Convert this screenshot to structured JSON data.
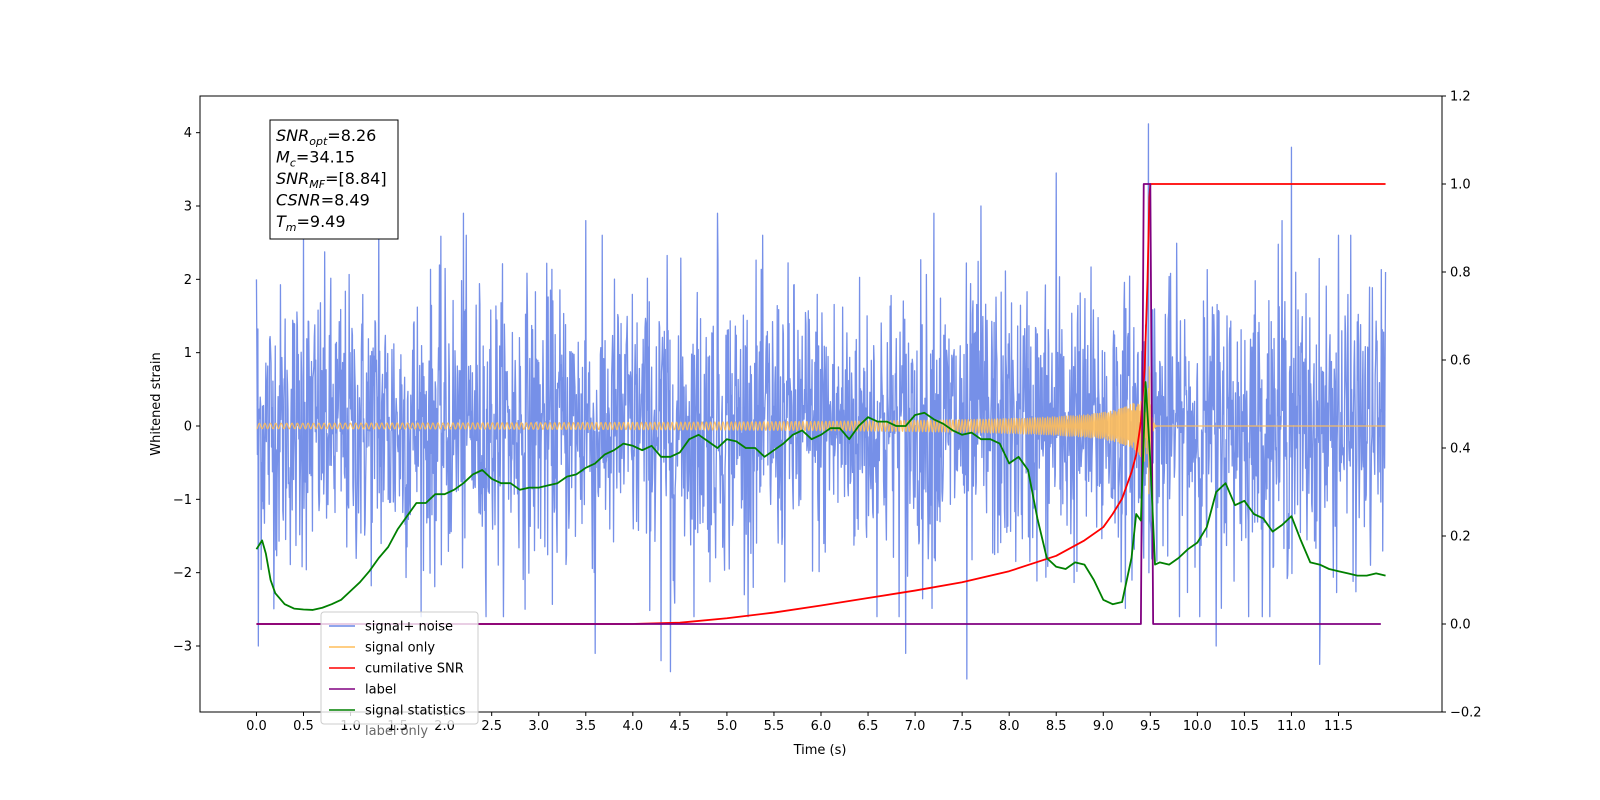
{
  "chart_data": {
    "type": "line",
    "xlabel": "Time (s)",
    "ylabel": "Whitened strain",
    "xlim": [
      -0.6,
      12.6
    ],
    "ylim": [
      -3.9,
      4.5
    ],
    "ylim_right": [
      -0.2,
      1.2
    ],
    "x_ticks": [
      "0.0",
      "0.5",
      "1.0",
      "1.5",
      "2.0",
      "2.5",
      "3.0",
      "3.5",
      "4.0",
      "4.5",
      "5.0",
      "5.5",
      "6.0",
      "6.5",
      "7.0",
      "7.5",
      "8.0",
      "8.5",
      "9.0",
      "9.5",
      "10.0",
      "10.5",
      "11.0",
      "11.5"
    ],
    "y_ticks_left": [
      "−3",
      "−2",
      "−1",
      "0",
      "1",
      "2",
      "3",
      "4"
    ],
    "y_ticks_right": [
      "−0.2",
      "0.0",
      "0.2",
      "0.4",
      "0.6",
      "0.8",
      "1.0",
      "1.2"
    ],
    "grid": false,
    "legend_placement": "lower-left",
    "annotation": [
      {
        "main": "SNR",
        "sub": "opt",
        "rest": "=8.26"
      },
      {
        "main": "M",
        "sub": "c",
        "rest": "=34.15"
      },
      {
        "main": "SNR",
        "sub": "MF",
        "rest": "=[8.84]"
      },
      {
        "main": "CSNR",
        "sub": "",
        "rest": "=8.49"
      },
      {
        "main": "T",
        "sub": "m",
        "rest": "=9.49"
      }
    ],
    "series": [
      {
        "name": "signal+ noise",
        "axis": "left",
        "color": "#6a87e6",
        "kind": "noise",
        "x_range": [
          0.0,
          12.0
        ],
        "peaks_high": [
          [
            0.0,
            2.0
          ],
          [
            0.5,
            2.6
          ],
          [
            1.3,
            2.9
          ],
          [
            2.2,
            2.9
          ],
          [
            3.5,
            2.8
          ],
          [
            4.9,
            2.9
          ],
          [
            7.2,
            2.9
          ],
          [
            7.7,
            3.0
          ],
          [
            8.5,
            3.45
          ],
          [
            9.48,
            4.12
          ],
          [
            10.9,
            2.8
          ],
          [
            11.0,
            3.8
          ],
          [
            11.5,
            2.6
          ],
          [
            12.0,
            2.1
          ]
        ],
        "peaks_low": [
          [
            0.02,
            -3.0
          ],
          [
            3.6,
            -3.1
          ],
          [
            4.3,
            -3.2
          ],
          [
            4.4,
            -3.35
          ],
          [
            6.9,
            -3.1
          ],
          [
            7.55,
            -3.45
          ],
          [
            10.2,
            -3.0
          ],
          [
            11.3,
            -3.25
          ]
        ]
      },
      {
        "name": "signal only",
        "axis": "left",
        "color": "#ffbe5a",
        "kind": "chirp",
        "x_range": [
          0.0,
          12.0
        ],
        "merger_time": 9.49,
        "peak_amplitude": 1.1
      },
      {
        "name": "cumilative SNR",
        "axis": "right",
        "color": "#ff0000",
        "x": [
          0.0,
          4.0,
          4.5,
          5.0,
          5.5,
          6.0,
          6.5,
          7.0,
          7.5,
          8.0,
          8.5,
          8.8,
          9.0,
          9.1,
          9.2,
          9.3,
          9.35,
          9.4,
          9.44,
          9.47,
          9.49,
          9.5,
          12.0
        ],
        "y": [
          0.0,
          0.0,
          0.003,
          0.013,
          0.026,
          0.042,
          0.059,
          0.076,
          0.095,
          0.12,
          0.155,
          0.19,
          0.22,
          0.25,
          0.285,
          0.345,
          0.385,
          0.46,
          0.58,
          0.78,
          0.97,
          1.0,
          1.0
        ]
      },
      {
        "name": "label",
        "axis": "right",
        "color": "#800080",
        "x": [
          0.0,
          9.4,
          9.43,
          9.5,
          9.53,
          11.95
        ],
        "y": [
          0.0,
          0.0,
          1.0,
          1.0,
          0.0,
          0.0
        ]
      },
      {
        "name": "label only",
        "axis": "right",
        "color": "#bb88ff",
        "hidden": true
      },
      {
        "name": "signal statistics",
        "axis": "right",
        "color": "#008000",
        "x": [
          0.0,
          0.06,
          0.1,
          0.15,
          0.2,
          0.3,
          0.4,
          0.5,
          0.6,
          0.7,
          0.8,
          0.9,
          1.0,
          1.1,
          1.2,
          1.3,
          1.4,
          1.5,
          1.6,
          1.7,
          1.8,
          1.9,
          2.0,
          2.1,
          2.2,
          2.3,
          2.4,
          2.5,
          2.6,
          2.7,
          2.8,
          2.9,
          3.0,
          3.1,
          3.2,
          3.3,
          3.4,
          3.5,
          3.6,
          3.7,
          3.8,
          3.9,
          4.0,
          4.1,
          4.2,
          4.3,
          4.4,
          4.5,
          4.6,
          4.7,
          4.8,
          4.9,
          5.0,
          5.1,
          5.2,
          5.3,
          5.4,
          5.5,
          5.6,
          5.7,
          5.8,
          5.9,
          6.0,
          6.1,
          6.2,
          6.3,
          6.4,
          6.5,
          6.6,
          6.7,
          6.8,
          6.9,
          7.0,
          7.1,
          7.2,
          7.3,
          7.4,
          7.5,
          7.6,
          7.7,
          7.8,
          7.9,
          8.0,
          8.1,
          8.2,
          8.3,
          8.4,
          8.5,
          8.6,
          8.7,
          8.8,
          8.9,
          9.0,
          9.1,
          9.2,
          9.3,
          9.35,
          9.4,
          9.45,
          9.5,
          9.55,
          9.6,
          9.7,
          9.8,
          9.9,
          10.0,
          10.1,
          10.2,
          10.3,
          10.4,
          10.5,
          10.6,
          10.7,
          10.8,
          10.9,
          11.0,
          11.1,
          11.2,
          11.3,
          11.4,
          11.5,
          11.6,
          11.7,
          11.8,
          11.9,
          12.0
        ],
        "y": [
          0.17,
          0.19,
          0.16,
          0.1,
          0.07,
          0.045,
          0.035,
          0.033,
          0.032,
          0.037,
          0.045,
          0.055,
          0.075,
          0.095,
          0.12,
          0.15,
          0.175,
          0.215,
          0.245,
          0.275,
          0.275,
          0.295,
          0.295,
          0.305,
          0.32,
          0.34,
          0.35,
          0.33,
          0.32,
          0.32,
          0.305,
          0.31,
          0.31,
          0.315,
          0.32,
          0.335,
          0.34,
          0.355,
          0.365,
          0.385,
          0.395,
          0.41,
          0.405,
          0.395,
          0.405,
          0.38,
          0.38,
          0.39,
          0.42,
          0.43,
          0.415,
          0.4,
          0.42,
          0.415,
          0.4,
          0.4,
          0.38,
          0.395,
          0.41,
          0.43,
          0.44,
          0.42,
          0.43,
          0.445,
          0.445,
          0.42,
          0.45,
          0.47,
          0.46,
          0.46,
          0.45,
          0.45,
          0.475,
          0.48,
          0.465,
          0.455,
          0.44,
          0.43,
          0.435,
          0.42,
          0.42,
          0.41,
          0.365,
          0.38,
          0.35,
          0.24,
          0.15,
          0.13,
          0.125,
          0.14,
          0.135,
          0.1,
          0.055,
          0.045,
          0.05,
          0.15,
          0.25,
          0.235,
          0.55,
          0.37,
          0.135,
          0.14,
          0.135,
          0.15,
          0.17,
          0.185,
          0.22,
          0.3,
          0.32,
          0.27,
          0.28,
          0.25,
          0.24,
          0.21,
          0.225,
          0.245,
          0.19,
          0.14,
          0.135,
          0.125,
          0.12,
          0.115,
          0.11,
          0.11,
          0.115,
          0.11
        ]
      }
    ]
  }
}
